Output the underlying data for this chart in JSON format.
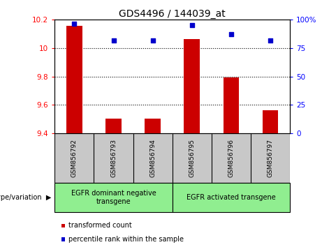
{
  "title": "GDS4496 / 144039_at",
  "samples": [
    "GSM856792",
    "GSM856793",
    "GSM856794",
    "GSM856795",
    "GSM856796",
    "GSM856797"
  ],
  "bar_values": [
    10.155,
    9.505,
    9.505,
    10.062,
    9.793,
    9.565
  ],
  "percentile_values": [
    96.5,
    81.5,
    81.5,
    95.5,
    87.5,
    81.5
  ],
  "ylim_left": [
    9.4,
    10.2
  ],
  "ylim_right": [
    0,
    100
  ],
  "yticks_left": [
    9.4,
    9.6,
    9.8,
    10.0,
    10.2
  ],
  "yticks_right": [
    0,
    25,
    50,
    75,
    100
  ],
  "ytick_labels_left": [
    "9.4",
    "9.6",
    "9.8",
    "10",
    "10.2"
  ],
  "ytick_labels_right": [
    "0",
    "25",
    "50",
    "75",
    "100%"
  ],
  "bar_color": "#cc0000",
  "dot_color": "#0000cc",
  "bar_bottom": 9.4,
  "group0_label": "EGFR dominant negative\ntransgene",
  "group1_label": "EGFR activated transgene",
  "group_color": "#90ee90",
  "group_label_text": "genotype/variation",
  "legend_items": [
    {
      "color": "#cc0000",
      "label": "transformed count"
    },
    {
      "color": "#0000cc",
      "label": "percentile rank within the sample"
    }
  ],
  "sample_box_color": "#c8c8c8",
  "title_fontsize": 10,
  "axis_fontsize": 7.5,
  "sample_fontsize": 6.5,
  "group_fontsize": 7,
  "legend_fontsize": 7
}
